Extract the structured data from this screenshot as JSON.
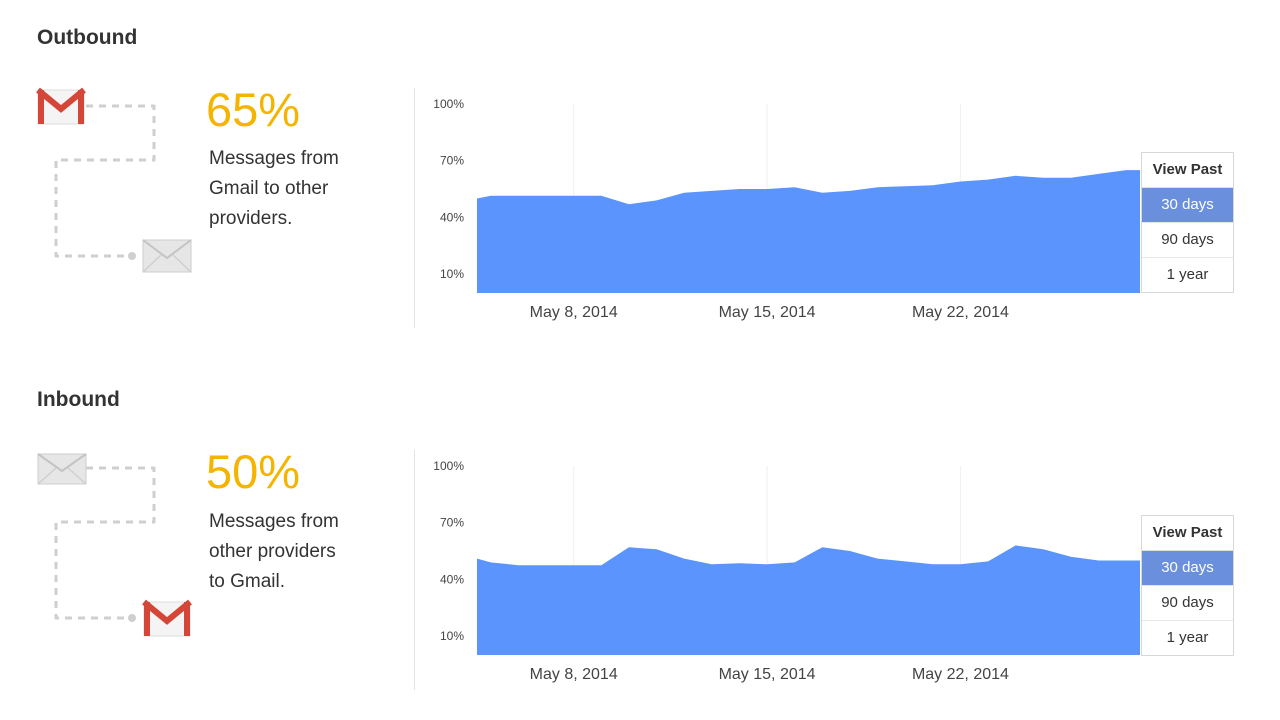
{
  "colors": {
    "accent": "#f4b400",
    "area": "#5b94fc",
    "selected": "#6a8fdc",
    "gmail_red": "#d44638"
  },
  "sections": [
    {
      "title": "Outbound",
      "percent": "65%",
      "description": "Messages from\nGmail to other\nproviders.",
      "icons": {
        "start": "gmail-icon",
        "end": "envelope-icon"
      },
      "range": {
        "header": "View Past",
        "options": [
          "30 days",
          "90 days",
          "1 year"
        ],
        "selected": "30 days"
      }
    },
    {
      "title": "Inbound",
      "percent": "50%",
      "description": "Messages from\nother providers\nto Gmail.",
      "icons": {
        "start": "envelope-icon",
        "end": "gmail-icon"
      },
      "range": {
        "header": "View Past",
        "options": [
          "30 days",
          "90 days",
          "1 year"
        ],
        "selected": "30 days"
      }
    }
  ],
  "chart_data": [
    {
      "type": "area",
      "yticks": [
        "100%",
        "70%",
        "40%",
        "10%"
      ],
      "ytick_values": [
        100,
        70,
        40,
        10
      ],
      "ylim": [
        0,
        100
      ],
      "xticks": [
        "May 8, 2014",
        "May 15, 2014",
        "May 22, 2014"
      ],
      "xtick_days": [
        8,
        15,
        22
      ],
      "xlim": [
        4.5,
        28.5
      ],
      "grid": true,
      "series": [
        {
          "x": [
            4.5,
            5,
            6,
            7,
            8,
            9,
            10,
            11,
            12,
            13,
            14,
            15,
            16,
            17,
            18,
            19,
            20,
            21,
            22,
            23,
            24,
            25,
            26,
            27,
            28,
            28.5
          ],
          "values": [
            50,
            51.5,
            51.5,
            51.5,
            51.5,
            51.5,
            47,
            49,
            53,
            54,
            55,
            55,
            56,
            53,
            54,
            56,
            56.5,
            57,
            59,
            60,
            62,
            61,
            61,
            63,
            65,
            65
          ]
        }
      ]
    },
    {
      "type": "area",
      "yticks": [
        "100%",
        "70%",
        "40%",
        "10%"
      ],
      "ytick_values": [
        100,
        70,
        40,
        10
      ],
      "ylim": [
        0,
        100
      ],
      "xticks": [
        "May 8, 2014",
        "May 15, 2014",
        "May 22, 2014"
      ],
      "xtick_days": [
        8,
        15,
        22
      ],
      "xlim": [
        4.5,
        28.5
      ],
      "grid": true,
      "series": [
        {
          "x": [
            4.5,
            5,
            6,
            7,
            8,
            9,
            10,
            11,
            12,
            13,
            14,
            15,
            16,
            17,
            18,
            19,
            20,
            21,
            22,
            23,
            24,
            25,
            26,
            27,
            28,
            28.5
          ],
          "values": [
            51,
            49,
            47.5,
            47.5,
            47.5,
            47.5,
            57,
            56,
            51,
            48,
            48.5,
            48,
            49,
            57,
            55,
            51,
            49.5,
            48,
            48,
            49.5,
            58,
            56,
            52,
            50,
            50,
            50
          ]
        }
      ]
    }
  ]
}
